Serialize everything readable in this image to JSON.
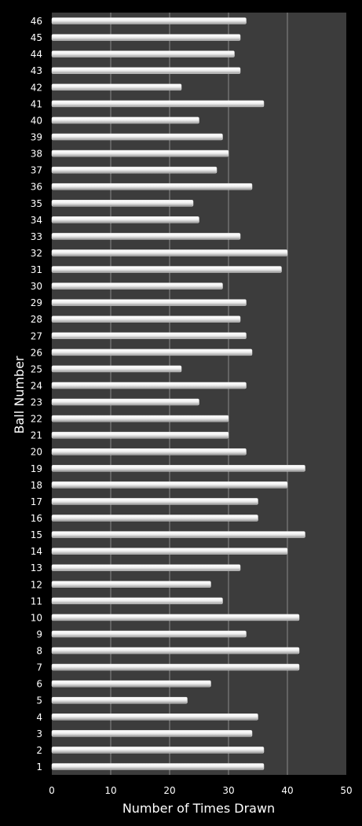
{
  "chart_data": {
    "type": "bar",
    "orientation": "horizontal",
    "xlabel": "Number of Times Drawn",
    "ylabel": "Ball Number",
    "xlim": [
      0,
      50
    ],
    "xticks": [
      "0",
      "10",
      "20",
      "30",
      "40",
      "50"
    ],
    "grid": true,
    "legend": "none",
    "colors": {
      "background": "#000000",
      "plot_area": "#3c3c3c",
      "bar": "#e8e8e8",
      "gridline": "#8a8a8a",
      "text": "#ffffff"
    },
    "categories": [
      "1",
      "2",
      "3",
      "4",
      "5",
      "6",
      "7",
      "8",
      "9",
      "10",
      "11",
      "12",
      "13",
      "14",
      "15",
      "16",
      "17",
      "18",
      "19",
      "20",
      "21",
      "22",
      "23",
      "24",
      "25",
      "26",
      "27",
      "28",
      "29",
      "30",
      "31",
      "32",
      "33",
      "34",
      "35",
      "36",
      "37",
      "38",
      "39",
      "40",
      "41",
      "42",
      "43",
      "44",
      "45",
      "46"
    ],
    "values": [
      36,
      36,
      34,
      35,
      23,
      27,
      42,
      42,
      33,
      42,
      29,
      27,
      32,
      40,
      43,
      35,
      35,
      40,
      43,
      33,
      30,
      30,
      25,
      33,
      22,
      34,
      33,
      32,
      33,
      29,
      39,
      40,
      32,
      25,
      24,
      34,
      28,
      30,
      29,
      25,
      36,
      22,
      32,
      31,
      32,
      33
    ]
  }
}
